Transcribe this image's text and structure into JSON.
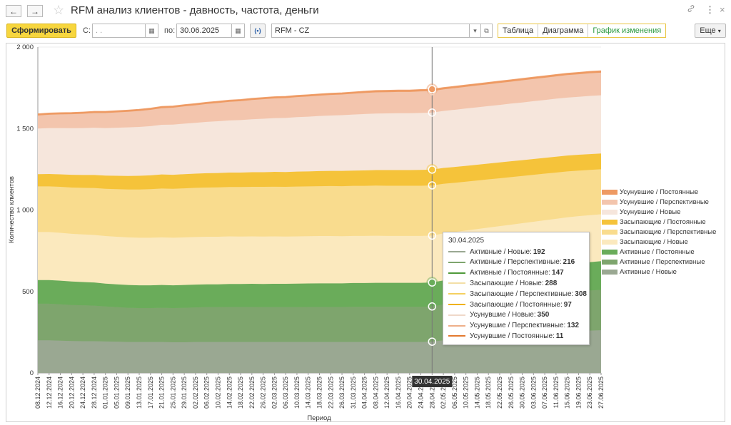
{
  "window": {
    "back": "←",
    "forward": "→",
    "title": "RFM анализ клиентов - давность, частота, деньги",
    "link_icon": "link-icon",
    "menu_icon": "more-vertical-icon",
    "close": "×"
  },
  "toolbar": {
    "generate_label": "Сформировать",
    "from_label": "С:",
    "from_value": " .  .",
    "to_label": "по:",
    "to_value": "30.06.2025",
    "variant_value": "RFM - CZ",
    "view_tabs": [
      "Таблица",
      "Диаграмма",
      "График изменения"
    ],
    "active_tab": 2,
    "more_label": "Еще"
  },
  "chart_data": {
    "type": "area",
    "stacked": true,
    "ylabel": "Количество клиентов",
    "xlabel": "Период",
    "ylim": [
      0,
      2000
    ],
    "y_ticks": [
      0,
      500,
      1000,
      1500,
      2000
    ],
    "y_tick_labels": [
      "0",
      "500",
      "1 000",
      "1 500",
      "2 000"
    ],
    "x": [
      "08.12.2024",
      "12.12.2024",
      "16.12.2024",
      "20.12.2024",
      "24.12.2024",
      "28.12.2024",
      "01.01.2025",
      "05.01.2025",
      "09.01.2025",
      "13.01.2025",
      "17.01.2025",
      "21.01.2025",
      "25.01.2025",
      "29.01.2025",
      "02.02.2025",
      "06.02.2025",
      "10.02.2025",
      "14.02.2025",
      "18.02.2025",
      "22.02.2025",
      "26.02.2025",
      "02.03.2025",
      "06.03.2025",
      "10.03.2025",
      "14.03.2025",
      "18.03.2025",
      "22.03.2025",
      "26.03.2025",
      "31.03.2025",
      "04.04.2025",
      "08.04.2025",
      "12.04.2025",
      "16.04.2025",
      "20.04.2025",
      "24.04.2025",
      "28.04.2025",
      "02.05.2025",
      "06.05.2025",
      "10.05.2025",
      "14.05.2025",
      "18.05.2025",
      "22.05.2025",
      "26.05.2025",
      "30.05.2025",
      "03.06.2025",
      "07.06.2025",
      "11.06.2025",
      "15.06.2025",
      "19.06.2025",
      "23.06.2025",
      "27.06.2025"
    ],
    "series": [
      {
        "name": "Активные / Новые",
        "color": "#9aa892",
        "values": [
          200,
          200,
          198,
          196,
          195,
          195,
          193,
          192,
          190,
          190,
          190,
          190,
          188,
          188,
          190,
          190,
          190,
          190,
          190,
          190,
          190,
          190,
          190,
          190,
          190,
          190,
          190,
          190,
          190,
          190,
          190,
          190,
          190,
          190,
          190,
          192,
          200,
          205,
          210,
          215,
          220,
          225,
          230,
          235,
          240,
          245,
          250,
          255,
          258,
          260,
          262
        ]
      },
      {
        "name": "Активные / Перспективные",
        "color": "#7ea56d",
        "values": [
          225,
          225,
          223,
          221,
          220,
          218,
          215,
          212,
          210,
          208,
          208,
          210,
          210,
          212,
          212,
          214,
          214,
          215,
          215,
          215,
          214,
          214,
          214,
          214,
          215,
          215,
          215,
          215,
          216,
          216,
          216,
          216,
          216,
          216,
          216,
          216,
          220,
          222,
          224,
          226,
          228,
          230,
          232,
          234,
          236,
          238,
          240,
          242,
          244,
          246,
          248
        ]
      },
      {
        "name": "Активные / Постоянные",
        "color": "#6aac5a",
        "values": [
          145,
          145,
          145,
          144,
          143,
          142,
          140,
          140,
          140,
          140,
          140,
          140,
          140,
          140,
          140,
          140,
          140,
          141,
          141,
          142,
          142,
          143,
          143,
          144,
          144,
          145,
          145,
          145,
          146,
          146,
          147,
          147,
          147,
          147,
          147,
          147,
          148,
          150,
          152,
          154,
          156,
          158,
          160,
          162,
          164,
          166,
          168,
          170,
          172,
          174,
          176
        ]
      },
      {
        "name": "Засыпающие / Новые",
        "color": "#fbe9be",
        "values": [
          295,
          295,
          294,
          293,
          292,
          292,
          292,
          292,
          292,
          292,
          292,
          292,
          292,
          292,
          292,
          292,
          292,
          292,
          291,
          291,
          291,
          291,
          290,
          290,
          290,
          290,
          290,
          289,
          289,
          289,
          289,
          288,
          288,
          288,
          288,
          288,
          288,
          288,
          288,
          288,
          288,
          288,
          288,
          288,
          288,
          288,
          288,
          288,
          288,
          288,
          288
        ]
      },
      {
        "name": "Засыпающие / Перспективные",
        "color": "#f9dc8e",
        "values": [
          280,
          280,
          282,
          284,
          286,
          288,
          290,
          292,
          294,
          296,
          298,
          300,
          300,
          301,
          302,
          302,
          303,
          303,
          304,
          304,
          305,
          305,
          305,
          306,
          306,
          306,
          307,
          307,
          307,
          307,
          308,
          308,
          308,
          308,
          308,
          308,
          305,
          302,
          300,
          298,
          296,
          294,
          292,
          290,
          288,
          286,
          284,
          282,
          280,
          278,
          276
        ]
      },
      {
        "name": "Засыпающие / Постоянные",
        "color": "#f5c33a",
        "values": [
          75,
          76,
          77,
          78,
          79,
          80,
          81,
          82,
          83,
          84,
          85,
          86,
          86,
          87,
          87,
          88,
          88,
          89,
          89,
          90,
          90,
          91,
          91,
          92,
          92,
          93,
          93,
          94,
          94,
          95,
          95,
          96,
          96,
          96,
          97,
          97,
          97,
          97,
          97,
          97,
          97,
          97,
          97,
          97,
          97,
          97,
          97,
          97,
          97,
          97,
          97
        ]
      },
      {
        "name": "Усунувшие / Новые",
        "color": "#f6e6dc",
        "values": [
          280,
          282,
          284,
          286,
          288,
          290,
          292,
          295,
          298,
          300,
          302,
          305,
          308,
          310,
          312,
          315,
          318,
          320,
          322,
          325,
          328,
          330,
          332,
          334,
          336,
          338,
          340,
          342,
          344,
          346,
          347,
          348,
          349,
          349,
          350,
          350,
          350,
          351,
          352,
          352,
          353,
          353,
          354,
          354,
          355,
          355,
          356,
          356,
          356,
          357,
          357
        ]
      },
      {
        "name": "Усунувшие / Перспективные",
        "color": "#f3c5ad",
        "values": [
          80,
          82,
          84,
          86,
          88,
          90,
          92,
          94,
          96,
          98,
          100,
          102,
          104,
          106,
          108,
          110,
          112,
          114,
          116,
          118,
          120,
          121,
          122,
          123,
          124,
          125,
          126,
          127,
          128,
          129,
          130,
          130,
          131,
          131,
          132,
          132,
          132,
          133,
          133,
          134,
          134,
          135,
          135,
          136,
          136,
          137,
          137,
          138,
          138,
          139,
          139
        ]
      },
      {
        "name": "Усунувшие / Постоянные",
        "color": "#ee9a63",
        "values": [
          10,
          10,
          10,
          10,
          10,
          10,
          10,
          10,
          10,
          10,
          10,
          10,
          10,
          10,
          10,
          10,
          10,
          10,
          10,
          10,
          10,
          10,
          10,
          10,
          10,
          10,
          10,
          10,
          10,
          11,
          11,
          11,
          11,
          11,
          11,
          11,
          11,
          11,
          11,
          11,
          11,
          11,
          11,
          11,
          11,
          11,
          11,
          11,
          11,
          11,
          11
        ]
      }
    ],
    "legend_order": [
      8,
      7,
      6,
      5,
      4,
      3,
      2,
      1,
      0
    ],
    "legend_position": "right",
    "crosshair": {
      "x_label": "30.04.2025",
      "index": 35,
      "tooltip_date": "30.04.2025",
      "tooltip_rows": [
        {
          "name": "Активные / Новые",
          "value": "192",
          "color": "#9aa892"
        },
        {
          "name": "Активные / Перспективные",
          "value": "216",
          "color": "#7ea56d"
        },
        {
          "name": "Активные / Постоянные",
          "value": "147",
          "color": "#4f9a3a"
        },
        {
          "name": "Засыпающие / Новые",
          "value": "288",
          "color": "#f3dfa6"
        },
        {
          "name": "Засыпающие / Перспективные",
          "value": "308",
          "color": "#f4d060"
        },
        {
          "name": "Засыпающие / Постоянные",
          "value": "97",
          "color": "#efb21a"
        },
        {
          "name": "Усунувшие / Новые",
          "value": "350",
          "color": "#efd8c9"
        },
        {
          "name": "Усунувшие / Перспективные",
          "value": "132",
          "color": "#eeaf8a"
        },
        {
          "name": "Усунувшие / Постоянные",
          "value": "11",
          "color": "#e3792f"
        }
      ]
    }
  }
}
